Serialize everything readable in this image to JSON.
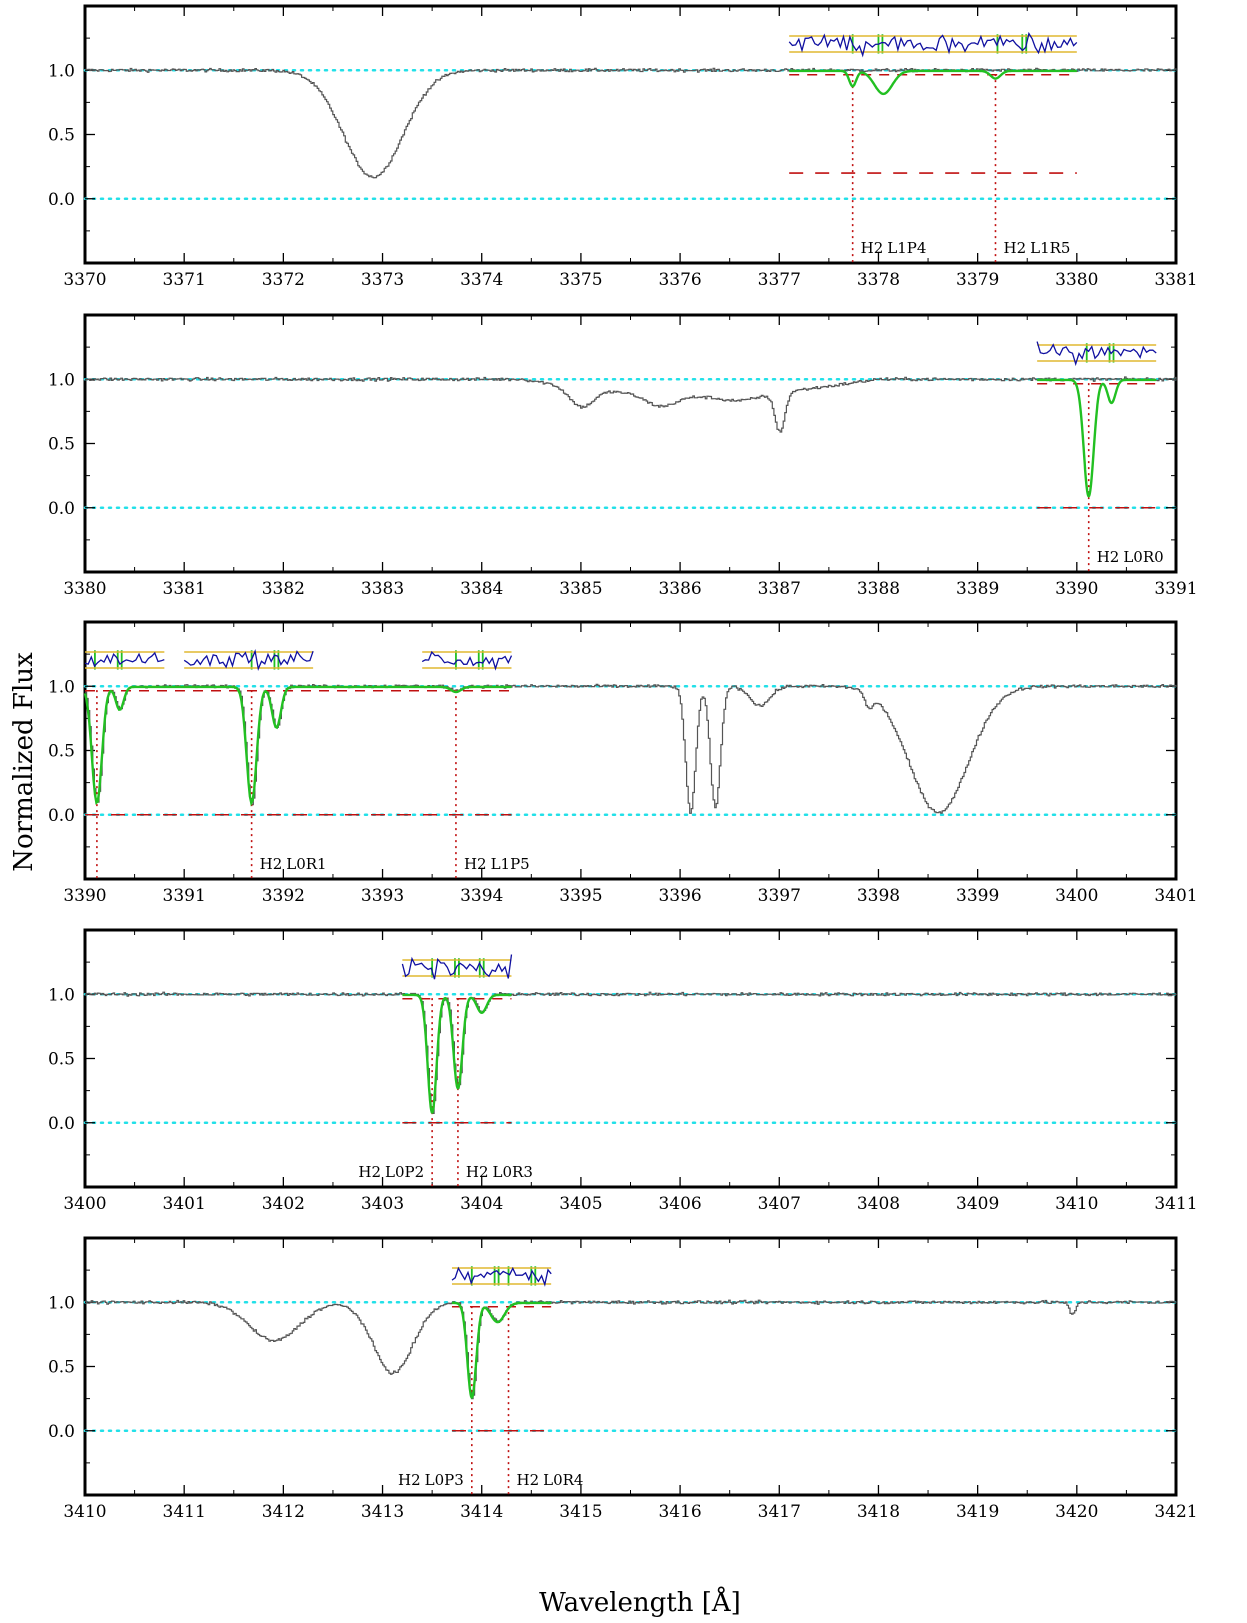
{
  "chart_data": {
    "type": "line",
    "ylabel": "Normalized Flux",
    "xlabel": "Wavelength [Å]",
    "colors": {
      "spectrum": "#555555",
      "fit": "#22c022",
      "residual": "#1010a0",
      "residual_band": "#e0b830",
      "continuum_guide": "#22e0e8",
      "marker": "#c01010",
      "component_tick": "#22c022"
    },
    "yticks": [
      "1.0",
      "0.5",
      "0.0"
    ],
    "ylim": [
      -0.5,
      1.5
    ],
    "panels": [
      {
        "xlim": [
          3370,
          3381
        ],
        "xticks": [
          "3370",
          "3371",
          "3372",
          "3373",
          "3374",
          "3375",
          "3376",
          "3377",
          "3378",
          "3379",
          "3380",
          "3381"
        ],
        "noise": 0.012,
        "continuum": [],
        "absorptions": [
          {
            "c": 3372.9,
            "d": 0.83,
            "w": 0.3
          }
        ],
        "fit_range": [
          3377.1,
          3380.0
        ],
        "fit_lines": [
          {
            "c": 3377.74,
            "d": 0.12,
            "w": 0.035
          },
          {
            "c": 3378.05,
            "d": 0.18,
            "w": 0.09
          },
          {
            "c": 3379.18,
            "d": 0.06,
            "w": 0.05
          }
        ],
        "zero_range": [
          3377.1,
          3380.0
        ],
        "residual_boxes": [
          [
            3377.1,
            3380.0
          ]
        ],
        "tick_groups": [
          [
            3377.74,
            3378.0,
            3378.04
          ],
          [
            3379.2,
            3379.45,
            3379.49
          ]
        ],
        "markers": [
          3377.74,
          3379.18
        ],
        "labels": [
          {
            "x": 3377.74,
            "molecule": "H2",
            "line": "L1P4"
          },
          {
            "x": 3379.18,
            "molecule": "H2",
            "line": "L1R5"
          }
        ]
      },
      {
        "xlim": [
          3380,
          3391
        ],
        "xticks": [
          "3380",
          "3381",
          "3382",
          "3383",
          "3384",
          "3385",
          "3386",
          "3387",
          "3388",
          "3389",
          "3390",
          "3391"
        ],
        "noise": 0.012,
        "continuum": [
          {
            "a": 3384.4,
            "b": 3388.7,
            "v": 0.87
          }
        ],
        "absorptions": [
          {
            "c": 3385.0,
            "d": 0.16,
            "w": 0.12
          },
          {
            "c": 3385.8,
            "d": 0.1,
            "w": 0.15
          },
          {
            "c": 3387.0,
            "d": 0.34,
            "w": 0.05
          },
          {
            "c": 3386.6,
            "d": 0.05,
            "w": 0.2
          }
        ],
        "fit_range": [
          3389.6,
          3390.8
        ],
        "fit_lines": [
          {
            "c": 3390.12,
            "d": 0.91,
            "w": 0.05
          },
          {
            "c": 3390.35,
            "d": 0.18,
            "w": 0.04
          }
        ],
        "zero_range": [
          3389.6,
          3390.8
        ],
        "residual_boxes": [
          [
            3389.6,
            3390.8
          ]
        ],
        "tick_groups": [
          [
            3390.1,
            3390.33,
            3390.37
          ]
        ],
        "markers": [
          3390.12
        ],
        "labels": [
          {
            "x": 3390.12,
            "molecule": "H2",
            "line": "L0R0"
          }
        ]
      },
      {
        "xlim": [
          3390,
          3401
        ],
        "xticks": [
          "3390",
          "3391",
          "3392",
          "3393",
          "3394",
          "3395",
          "3396",
          "3397",
          "3398",
          "3399",
          "3400",
          "3401"
        ],
        "noise": 0.012,
        "continuum": [],
        "absorptions": [
          {
            "c": 3390.12,
            "d": 0.91,
            "w": 0.05
          },
          {
            "c": 3390.35,
            "d": 0.18,
            "w": 0.04
          },
          {
            "c": 3391.68,
            "d": 0.91,
            "w": 0.05
          },
          {
            "c": 3391.93,
            "d": 0.32,
            "w": 0.045
          },
          {
            "c": 3393.74,
            "d": 0.04,
            "w": 0.05
          },
          {
            "c": 3396.1,
            "d": 0.98,
            "w": 0.05
          },
          {
            "c": 3396.35,
            "d": 0.95,
            "w": 0.05
          },
          {
            "c": 3396.8,
            "d": 0.15,
            "w": 0.1
          },
          {
            "c": 3397.9,
            "d": 0.12,
            "w": 0.04
          },
          {
            "c": 3398.6,
            "d": 0.98,
            "w": 0.3
          }
        ],
        "fit_range": [
          3390.0,
          3394.3
        ],
        "fit_lines": [
          {
            "c": 3390.12,
            "d": 0.91,
            "w": 0.05
          },
          {
            "c": 3390.35,
            "d": 0.18,
            "w": 0.04
          },
          {
            "c": 3391.68,
            "d": 0.91,
            "w": 0.05
          },
          {
            "c": 3391.93,
            "d": 0.32,
            "w": 0.045
          },
          {
            "c": 3393.74,
            "d": 0.04,
            "w": 0.05
          }
        ],
        "zero_range": [
          3390.0,
          3394.3
        ],
        "residual_boxes": [
          [
            3390.0,
            3390.8
          ],
          [
            3391.0,
            3392.3
          ],
          [
            3393.4,
            3394.3
          ]
        ],
        "tick_groups": [
          [
            3390.1,
            3390.33,
            3390.37
          ],
          [
            3391.68,
            3391.91,
            3391.95
          ],
          [
            3393.74,
            3393.97,
            3394.01
          ]
        ],
        "markers": [
          3390.12,
          3391.68,
          3393.74
        ],
        "labels": [
          {
            "x": 3391.68,
            "molecule": "H2",
            "line": "L0R1"
          },
          {
            "x": 3393.74,
            "molecule": "H2",
            "line": "L1P5"
          }
        ]
      },
      {
        "xlim": [
          3400,
          3411
        ],
        "xticks": [
          "3400",
          "3401",
          "3402",
          "3403",
          "3404",
          "3405",
          "3406",
          "3407",
          "3408",
          "3409",
          "3410",
          "3411"
        ],
        "noise": 0.012,
        "continuum": [],
        "absorptions": [
          {
            "c": 3403.5,
            "d": 0.92,
            "w": 0.045
          },
          {
            "c": 3403.76,
            "d": 0.73,
            "w": 0.045
          },
          {
            "c": 3404.0,
            "d": 0.14,
            "w": 0.05
          }
        ],
        "fit_range": [
          3403.2,
          3404.3
        ],
        "fit_lines": [
          {
            "c": 3403.5,
            "d": 0.92,
            "w": 0.045
          },
          {
            "c": 3403.76,
            "d": 0.73,
            "w": 0.045
          },
          {
            "c": 3404.0,
            "d": 0.14,
            "w": 0.05
          }
        ],
        "zero_range": [
          3403.2,
          3404.3
        ],
        "residual_boxes": [
          [
            3403.2,
            3404.3
          ]
        ],
        "tick_groups": [
          [
            3403.5,
            3403.73,
            3403.77
          ],
          [
            3403.98,
            3404.02
          ]
        ],
        "markers": [
          3403.5,
          3403.76
        ],
        "labels": [
          {
            "x": 3403.5,
            "molecule": "H2",
            "line": "L0P2",
            "side": "left"
          },
          {
            "x": 3403.76,
            "molecule": "H2",
            "line": "L0R3"
          }
        ]
      },
      {
        "xlim": [
          3410,
          3421
        ],
        "xticks": [
          "3410",
          "3411",
          "3412",
          "3413",
          "3414",
          "3415",
          "3416",
          "3417",
          "3418",
          "3419",
          "3420",
          "3421"
        ],
        "noise": 0.012,
        "continuum": [],
        "absorptions": [
          {
            "c": 3411.9,
            "d": 0.3,
            "w": 0.25
          },
          {
            "c": 3413.1,
            "d": 0.55,
            "w": 0.2
          },
          {
            "c": 3413.9,
            "d": 0.74,
            "w": 0.045
          },
          {
            "c": 3414.16,
            "d": 0.15,
            "w": 0.07
          },
          {
            "c": 3419.95,
            "d": 0.1,
            "w": 0.03
          }
        ],
        "fit_range": [
          3413.7,
          3414.7
        ],
        "fit_lines": [
          {
            "c": 3413.9,
            "d": 0.74,
            "w": 0.045
          },
          {
            "c": 3414.16,
            "d": 0.15,
            "w": 0.07
          }
        ],
        "zero_range": [
          3413.7,
          3414.7
        ],
        "residual_boxes": [
          [
            3413.7,
            3414.7
          ]
        ],
        "tick_groups": [
          [
            3413.9,
            3414.13,
            3414.17
          ],
          [
            3414.27
          ],
          [
            3414.5,
            3414.54
          ]
        ],
        "markers": [
          3413.9,
          3414.27
        ],
        "labels": [
          {
            "x": 3413.9,
            "molecule": "H2",
            "line": "L0P3",
            "side": "left"
          },
          {
            "x": 3414.27,
            "molecule": "H2",
            "line": "L0R4"
          }
        ]
      }
    ]
  }
}
